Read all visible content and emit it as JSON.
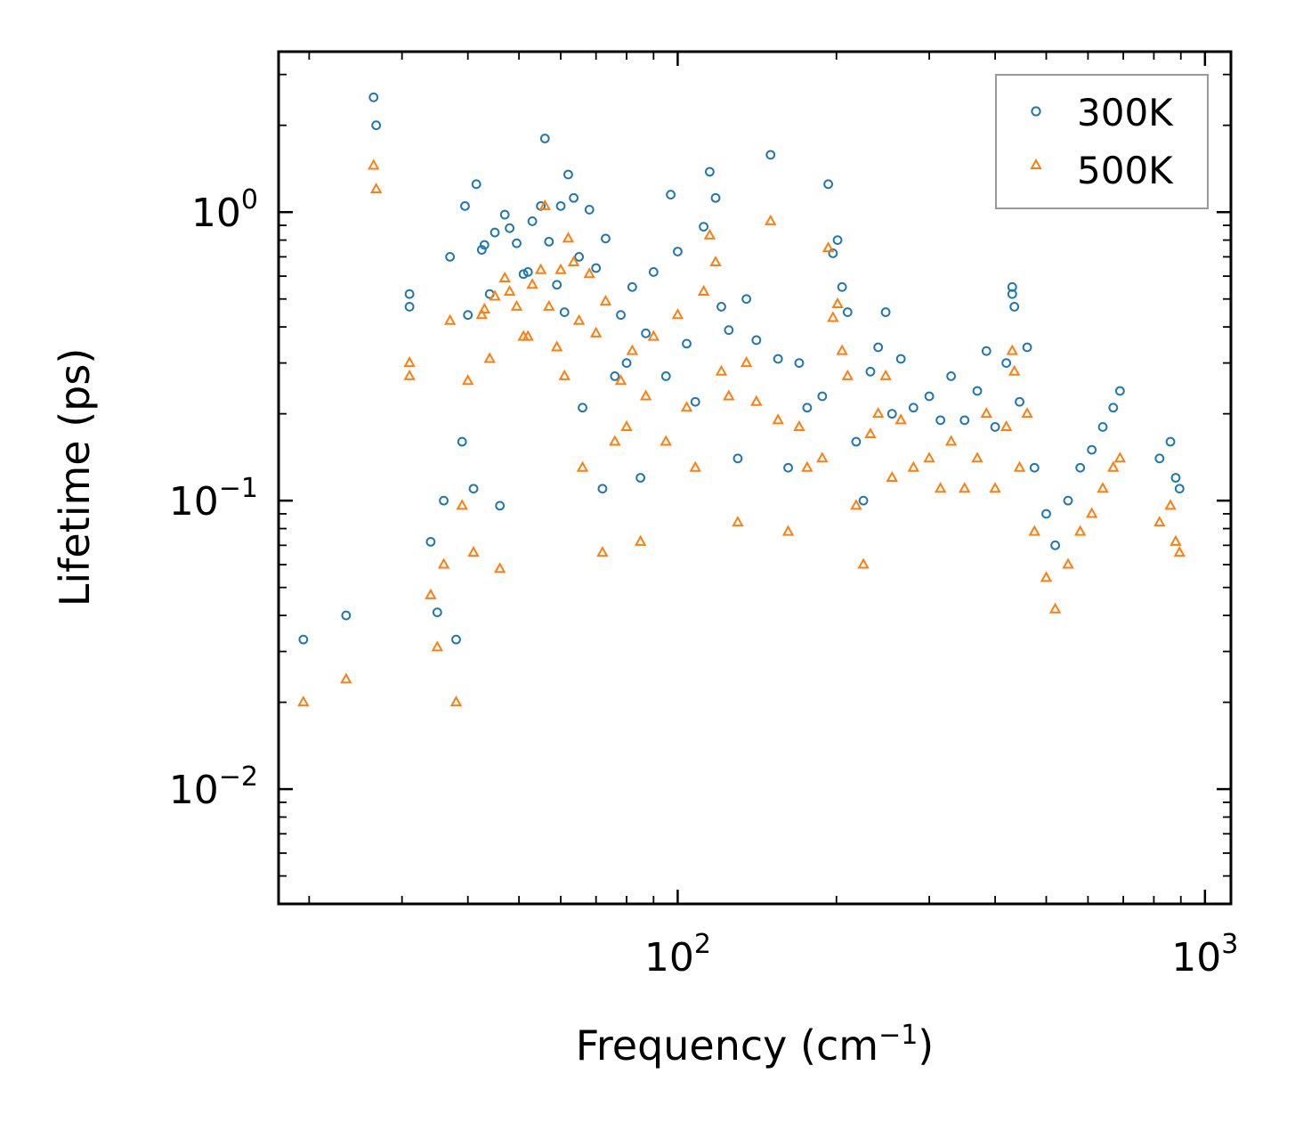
{
  "chart_data": {
    "type": "scatter",
    "title": "",
    "xlabel": "Frequency (cm",
    "xlabel_sup": "−1",
    "xlabel_end": ")",
    "ylabel": "Lifetime (ps)",
    "xscale": "log",
    "yscale": "log",
    "xlim": [
      17.5,
      1120
    ],
    "ylim": [
      0.004,
      3.6
    ],
    "x_tick_labels": [
      {
        "value": 100,
        "base": "10",
        "exp": "2"
      },
      {
        "value": 1000,
        "base": "10",
        "exp": "3"
      }
    ],
    "y_tick_labels": [
      {
        "value": 0.01,
        "base": "10",
        "exp": "−2"
      },
      {
        "value": 0.1,
        "base": "10",
        "exp": "−1"
      },
      {
        "value": 1,
        "base": "10",
        "exp": "0"
      }
    ],
    "legend_position": "top-right",
    "series": [
      {
        "name": "300K",
        "color": "#1f77b4",
        "marker": "circle",
        "points": [
          [
            19.5,
            0.033
          ],
          [
            23.5,
            0.04
          ],
          [
            26.5,
            2.5
          ],
          [
            26.8,
            2.0
          ],
          [
            31,
            0.52
          ],
          [
            31,
            0.47
          ],
          [
            34,
            0.072
          ],
          [
            35,
            0.041
          ],
          [
            36,
            0.1
          ],
          [
            37,
            0.7
          ],
          [
            38,
            0.033
          ],
          [
            39,
            0.16
          ],
          [
            39.5,
            1.05
          ],
          [
            40,
            0.44
          ],
          [
            41,
            0.11
          ],
          [
            41.5,
            1.25
          ],
          [
            42.5,
            0.74
          ],
          [
            43,
            0.77
          ],
          [
            44,
            0.52
          ],
          [
            45,
            0.85
          ],
          [
            46,
            0.096
          ],
          [
            47,
            0.98
          ],
          [
            48,
            0.88
          ],
          [
            49.5,
            0.78
          ],
          [
            51,
            0.61
          ],
          [
            52,
            0.62
          ],
          [
            53,
            0.93
          ],
          [
            55,
            1.05
          ],
          [
            56,
            1.8
          ],
          [
            57,
            0.79
          ],
          [
            59,
            0.56
          ],
          [
            60,
            1.05
          ],
          [
            61,
            0.45
          ],
          [
            62,
            1.35
          ],
          [
            63.5,
            1.12
          ],
          [
            65,
            0.7
          ],
          [
            66,
            0.21
          ],
          [
            68,
            1.02
          ],
          [
            70,
            0.64
          ],
          [
            72,
            0.11
          ],
          [
            73,
            0.81
          ],
          [
            76,
            0.27
          ],
          [
            78,
            0.44
          ],
          [
            80,
            0.3
          ],
          [
            82,
            0.55
          ],
          [
            85,
            0.12
          ],
          [
            87,
            0.38
          ],
          [
            90,
            0.62
          ],
          [
            95,
            0.27
          ],
          [
            97,
            1.15
          ],
          [
            100,
            0.73
          ],
          [
            104,
            0.35
          ],
          [
            108,
            0.22
          ],
          [
            112,
            0.89
          ],
          [
            115,
            1.38
          ],
          [
            118,
            1.12
          ],
          [
            121,
            0.47
          ],
          [
            125,
            0.39
          ],
          [
            130,
            0.14
          ],
          [
            135,
            0.5
          ],
          [
            141,
            0.36
          ],
          [
            150,
            1.58
          ],
          [
            155,
            0.31
          ],
          [
            162,
            0.13
          ],
          [
            170,
            0.3
          ],
          [
            176,
            0.21
          ],
          [
            188,
            0.23
          ],
          [
            193,
            1.25
          ],
          [
            197,
            0.72
          ],
          [
            201,
            0.8
          ],
          [
            205,
            0.55
          ],
          [
            210,
            0.45
          ],
          [
            218,
            0.16
          ],
          [
            225,
            0.1
          ],
          [
            232,
            0.28
          ],
          [
            240,
            0.34
          ],
          [
            248,
            0.45
          ],
          [
            255,
            0.2
          ],
          [
            265,
            0.31
          ],
          [
            280,
            0.21
          ],
          [
            300,
            0.23
          ],
          [
            315,
            0.19
          ],
          [
            330,
            0.27
          ],
          [
            350,
            0.19
          ],
          [
            370,
            0.24
          ],
          [
            385,
            0.33
          ],
          [
            400,
            0.18
          ],
          [
            420,
            0.3
          ],
          [
            431,
            0.55
          ],
          [
            431,
            0.52
          ],
          [
            435,
            0.47
          ],
          [
            445,
            0.22
          ],
          [
            460,
            0.34
          ],
          [
            475,
            0.13
          ],
          [
            500,
            0.09
          ],
          [
            520,
            0.07
          ],
          [
            550,
            0.1
          ],
          [
            580,
            0.13
          ],
          [
            610,
            0.15
          ],
          [
            640,
            0.18
          ],
          [
            670,
            0.21
          ],
          [
            690,
            0.24
          ],
          [
            820,
            0.14
          ],
          [
            860,
            0.16
          ],
          [
            880,
            0.12
          ],
          [
            895,
            0.11
          ]
        ]
      },
      {
        "name": "500K",
        "color": "#ff7f0e",
        "marker": "triangle",
        "points": [
          [
            19.5,
            0.02
          ],
          [
            23.5,
            0.024
          ],
          [
            26.5,
            1.45
          ],
          [
            26.8,
            1.2
          ],
          [
            31,
            0.3
          ],
          [
            31,
            0.27
          ],
          [
            34,
            0.047
          ],
          [
            35,
            0.031
          ],
          [
            36,
            0.06
          ],
          [
            37,
            0.42
          ],
          [
            38,
            0.02
          ],
          [
            39,
            0.096
          ],
          [
            40,
            0.26
          ],
          [
            41,
            0.066
          ],
          [
            42.5,
            0.44
          ],
          [
            43,
            0.46
          ],
          [
            44,
            0.31
          ],
          [
            45,
            0.51
          ],
          [
            46,
            0.058
          ],
          [
            47,
            0.59
          ],
          [
            48,
            0.53
          ],
          [
            49.5,
            0.47
          ],
          [
            51,
            0.37
          ],
          [
            52,
            0.37
          ],
          [
            53,
            0.56
          ],
          [
            55,
            0.63
          ],
          [
            56,
            1.05
          ],
          [
            57,
            0.47
          ],
          [
            59,
            0.34
          ],
          [
            60,
            0.63
          ],
          [
            61,
            0.27
          ],
          [
            62,
            0.81
          ],
          [
            63.5,
            0.67
          ],
          [
            65,
            0.42
          ],
          [
            66,
            0.13
          ],
          [
            68,
            0.61
          ],
          [
            70,
            0.38
          ],
          [
            72,
            0.066
          ],
          [
            73,
            0.49
          ],
          [
            76,
            0.16
          ],
          [
            78,
            0.26
          ],
          [
            80,
            0.18
          ],
          [
            82,
            0.33
          ],
          [
            85,
            0.072
          ],
          [
            87,
            0.23
          ],
          [
            90,
            0.37
          ],
          [
            95,
            0.16
          ],
          [
            100,
            0.44
          ],
          [
            104,
            0.21
          ],
          [
            108,
            0.13
          ],
          [
            112,
            0.53
          ],
          [
            115,
            0.83
          ],
          [
            118,
            0.67
          ],
          [
            121,
            0.28
          ],
          [
            125,
            0.23
          ],
          [
            130,
            0.084
          ],
          [
            135,
            0.3
          ],
          [
            141,
            0.22
          ],
          [
            150,
            0.93
          ],
          [
            155,
            0.19
          ],
          [
            162,
            0.078
          ],
          [
            170,
            0.18
          ],
          [
            176,
            0.13
          ],
          [
            188,
            0.14
          ],
          [
            193,
            0.75
          ],
          [
            197,
            0.43
          ],
          [
            201,
            0.48
          ],
          [
            205,
            0.33
          ],
          [
            210,
            0.27
          ],
          [
            218,
            0.096
          ],
          [
            225,
            0.06
          ],
          [
            232,
            0.17
          ],
          [
            240,
            0.2
          ],
          [
            248,
            0.27
          ],
          [
            255,
            0.12
          ],
          [
            265,
            0.19
          ],
          [
            280,
            0.13
          ],
          [
            300,
            0.14
          ],
          [
            315,
            0.11
          ],
          [
            330,
            0.16
          ],
          [
            350,
            0.11
          ],
          [
            370,
            0.14
          ],
          [
            385,
            0.2
          ],
          [
            400,
            0.11
          ],
          [
            420,
            0.18
          ],
          [
            431,
            0.33
          ],
          [
            435,
            0.28
          ],
          [
            445,
            0.13
          ],
          [
            460,
            0.2
          ],
          [
            475,
            0.078
          ],
          [
            500,
            0.054
          ],
          [
            520,
            0.042
          ],
          [
            550,
            0.06
          ],
          [
            580,
            0.078
          ],
          [
            610,
            0.09
          ],
          [
            640,
            0.11
          ],
          [
            670,
            0.13
          ],
          [
            690,
            0.14
          ],
          [
            820,
            0.084
          ],
          [
            860,
            0.096
          ],
          [
            880,
            0.072
          ],
          [
            895,
            0.066
          ]
        ]
      }
    ]
  }
}
